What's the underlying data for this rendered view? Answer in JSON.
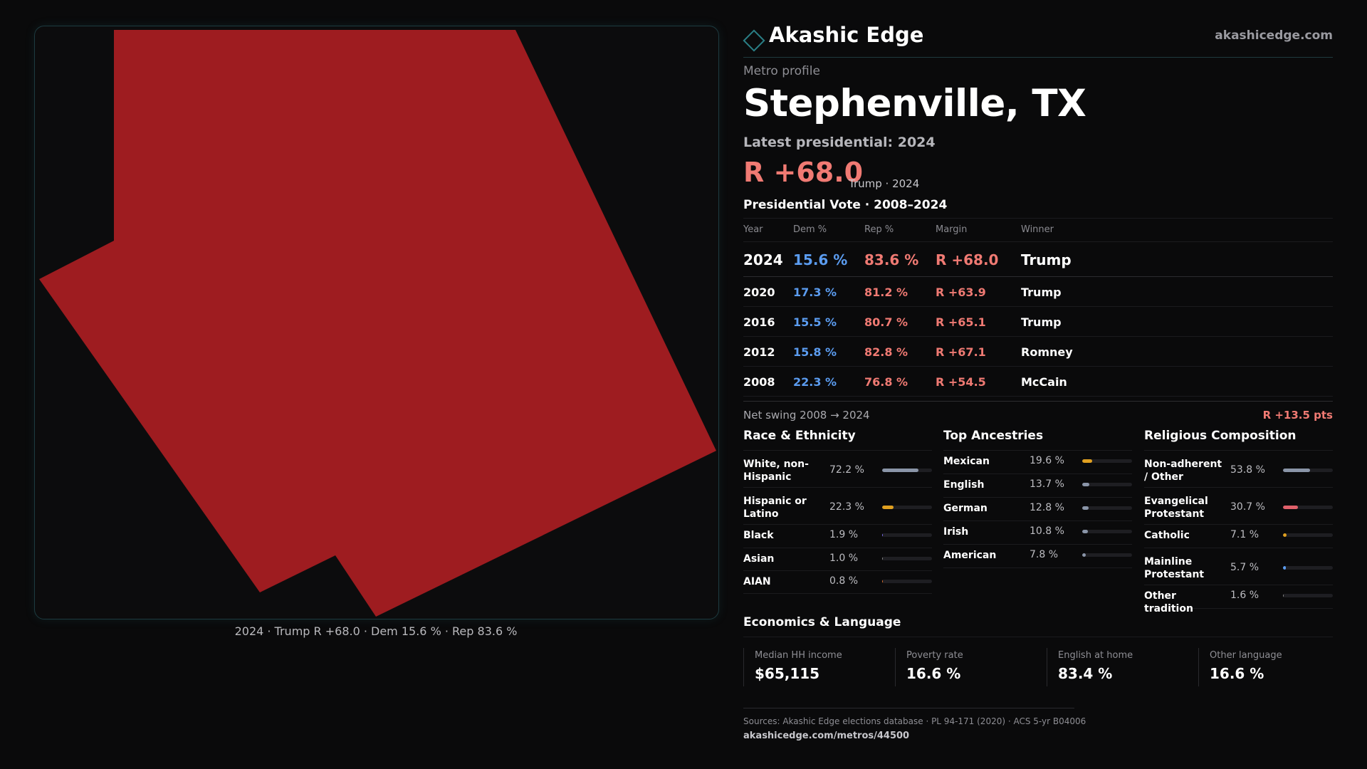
{
  "map": {
    "fill_color": "#9e1c20",
    "caption": "2024 · Trump R +68.0 · Dem 15.6 % · Rep 83.6 %"
  },
  "header": {
    "brand": "Akashic Edge",
    "site": "akashicedge.com"
  },
  "profile": {
    "kicker": "Metro profile",
    "title": "Stephenville, TX",
    "latest_label": "Latest presidential: 2024",
    "latest_margin": "R +68.0",
    "latest_sub": "Trump · 2024"
  },
  "vote_table": {
    "title": "Presidential Vote · 2008–2024",
    "columns": [
      "Year",
      "Dem %",
      "Rep %",
      "Margin",
      "Winner"
    ],
    "rows": [
      {
        "year": "2024",
        "dem": "15.6 %",
        "rep": "83.6 %",
        "margin": "R +68.0",
        "winner": "Trump"
      },
      {
        "year": "2020",
        "dem": "17.3 %",
        "rep": "81.2 %",
        "margin": "R +63.9",
        "winner": "Trump"
      },
      {
        "year": "2016",
        "dem": "15.5 %",
        "rep": "80.7 %",
        "margin": "R +65.1",
        "winner": "Trump"
      },
      {
        "year": "2012",
        "dem": "15.8 %",
        "rep": "82.8 %",
        "margin": "R +67.1",
        "winner": "Romney"
      },
      {
        "year": "2008",
        "dem": "22.3 %",
        "rep": "76.8 %",
        "margin": "R +54.5",
        "winner": "McCain"
      }
    ]
  },
  "swing": {
    "label": "Net swing 2008 → 2024",
    "value": "R +13.5 pts"
  },
  "race": {
    "title": "Race & Ethnicity",
    "rows": [
      {
        "label": "White, non-Hispanic",
        "value": "72.2 %",
        "fraction": 0.722,
        "color": "#8a95a8"
      },
      {
        "label": "Hispanic or Latino",
        "value": "22.3 %",
        "fraction": 0.223,
        "color": "#e0a020"
      },
      {
        "label": "Black",
        "value": "1.9 %",
        "fraction": 0.019,
        "color": "#7b6cf0"
      },
      {
        "label": "Asian",
        "value": "1.0 %",
        "fraction": 0.01,
        "color": "#8a8a8a"
      },
      {
        "label": "AIAN",
        "value": "0.8 %",
        "fraction": 0.008,
        "color": "#e07030"
      }
    ]
  },
  "ancestry": {
    "title": "Top Ancestries",
    "rows": [
      {
        "label": "Mexican",
        "value": "19.6 %",
        "fraction": 0.196,
        "color": "#e0a020"
      },
      {
        "label": "English",
        "value": "13.7 %",
        "fraction": 0.137,
        "color": "#8a95a8"
      },
      {
        "label": "German",
        "value": "12.8 %",
        "fraction": 0.128,
        "color": "#8a95a8"
      },
      {
        "label": "Irish",
        "value": "10.8 %",
        "fraction": 0.108,
        "color": "#8a95a8"
      },
      {
        "label": "American",
        "value": "7.8 %",
        "fraction": 0.078,
        "color": "#8a95a8"
      }
    ]
  },
  "religion": {
    "title": "Religious Composition",
    "rows": [
      {
        "label": "Non-adherent / Other",
        "value": "53.8 %",
        "fraction": 0.538,
        "color": "#8a95a8"
      },
      {
        "label": "Evangelical Protestant",
        "value": "30.7 %",
        "fraction": 0.307,
        "color": "#e0606a"
      },
      {
        "label": "Catholic",
        "value": "7.1 %",
        "fraction": 0.071,
        "color": "#e0a020"
      },
      {
        "label": "Mainline Protestant",
        "value": "5.7 %",
        "fraction": 0.057,
        "color": "#5b9cf0"
      },
      {
        "label": "Other tradition",
        "value": "1.6 %",
        "fraction": 0.016,
        "color": "#8a8a8a"
      }
    ]
  },
  "economics": {
    "title": "Economics & Language",
    "cards": [
      {
        "label": "Median HH income",
        "value": "$65,115"
      },
      {
        "label": "Poverty rate",
        "value": "16.6 %"
      },
      {
        "label": "English at home",
        "value": "83.4 %"
      },
      {
        "label": "Other language",
        "value": "16.6 %"
      }
    ]
  },
  "footer": {
    "sources": "Sources: Akashic Edge elections database · PL 94-171 (2020) · ACS 5-yr B04006",
    "url": "akashicedge.com/metros/44500"
  }
}
